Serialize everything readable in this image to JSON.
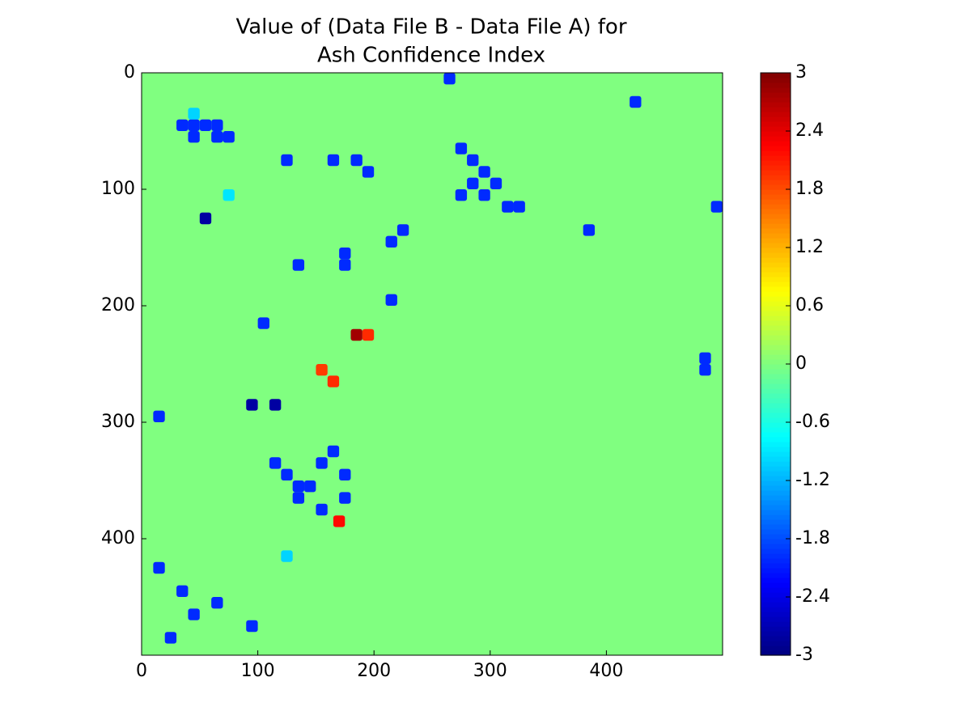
{
  "chart_data": {
    "type": "heatmap",
    "title": [
      "Value of (Data File B - Data File A) for",
      "Ash Confidence Index"
    ],
    "colormap": "jet",
    "background_value": 0,
    "x": [
      30,
      40,
      50,
      60,
      70,
      40,
      60,
      270,
      280,
      290,
      300,
      280,
      270,
      290,
      160,
      180,
      190,
      110,
      120,
      130,
      140,
      150,
      160,
      170,
      170,
      150,
      130,
      170,
      170,
      480,
      480,
      420,
      10,
      10,
      30,
      40,
      20,
      60,
      90,
      310,
      320,
      380,
      210,
      220,
      490,
      120,
      100,
      210,
      260,
      130,
      180,
      190,
      165,
      150,
      160,
      90,
      110,
      50,
      40,
      70,
      120
    ],
    "y": [
      40,
      40,
      40,
      40,
      50,
      50,
      50,
      60,
      70,
      80,
      90,
      90,
      100,
      100,
      70,
      70,
      80,
      330,
      340,
      350,
      350,
      330,
      320,
      340,
      360,
      370,
      360,
      150,
      160,
      240,
      250,
      20,
      290,
      420,
      440,
      460,
      480,
      450,
      470,
      110,
      110,
      130,
      140,
      130,
      110,
      70,
      210,
      190,
      0,
      160,
      220,
      220,
      380,
      250,
      260,
      280,
      280,
      120,
      30,
      100,
      410
    ],
    "values": [
      -2,
      -2,
      -2,
      -2,
      -2,
      -2,
      -2,
      -2,
      -2,
      -2,
      -2,
      -2,
      -2,
      -2,
      -2,
      -2,
      -2,
      -2,
      -2,
      -2,
      -2,
      -2,
      -2,
      -2,
      -2,
      -2,
      -2,
      -2,
      -2,
      -2,
      -2,
      -2,
      -2,
      -2,
      -2,
      -2,
      -2,
      -2,
      -2,
      -2,
      -2,
      -2,
      -2,
      -2,
      -2,
      -2,
      -2,
      -2,
      -2,
      -2,
      2.8,
      2,
      2.2,
      1.9,
      2,
      -2.8,
      -2.8,
      -2.8,
      -1,
      -0.9,
      -1
    ],
    "xlim": [
      0,
      500
    ],
    "ylim": [
      500,
      0
    ],
    "xticks": [
      0,
      100,
      200,
      300,
      400
    ],
    "yticks": [
      0,
      100,
      200,
      300,
      400
    ],
    "clim": [
      -3,
      3
    ],
    "cticks": [
      3,
      2.4,
      1.8,
      1.2,
      0.6,
      0,
      -0.6,
      -1.2,
      -1.8,
      -2.4,
      -3
    ]
  }
}
